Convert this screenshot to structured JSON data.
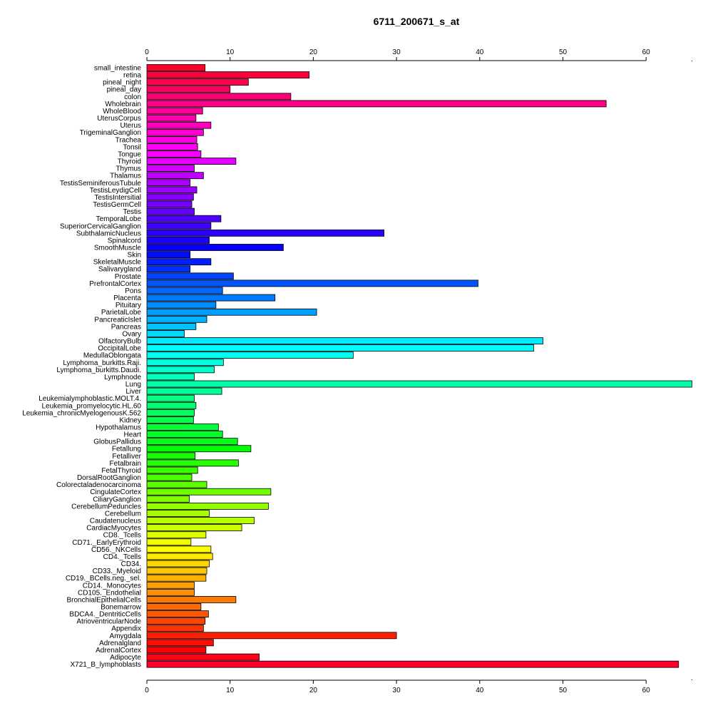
{
  "chart_data": {
    "type": "bar",
    "orientation": "horizontal",
    "title": "6711_200671_s_at",
    "xlim": [
      0,
      65.5
    ],
    "xticks": [
      0,
      10,
      20,
      30,
      40,
      50,
      60
    ],
    "colormap": "rainbow (red-magenta-blue-cyan-green-yellow-orange-red from top to bottom)",
    "categories": [
      "small_intestine",
      "retina",
      "pineal_night",
      "pineal_day",
      "colon",
      "Wholebrain",
      "WholeBlood",
      "UterusCorpus",
      "Uterus",
      "TrigeminalGanglion",
      "Trachea",
      "Tonsil",
      "Tongue",
      "Thyroid",
      "Thymus",
      "Thalamus",
      "TestisSeminiferousTubule",
      "TestisLeydigCell",
      "TestisIntersitial",
      "TestisGermCell",
      "Testis",
      "TemporalLobe",
      "SuperiorCervicalGanglion",
      "SubthalamicNucleus",
      "Spinalcord",
      "SmoothMuscle",
      "Skin",
      "SkeletalMuscle",
      "Salivarygland",
      "Prostate",
      "PrefrontalCortex",
      "Pons",
      "Placenta",
      "Pituitary",
      "ParietalLobe",
      "PancreaticIslet",
      "Pancreas",
      "Ovary",
      "OlfactoryBulb",
      "OccipitalLobe",
      "MedullaOblongata",
      "Lymphoma_burkitts.Raji.",
      "Lymphoma_burkitts.Daudi.",
      "Lymphnode",
      "Lung",
      "Liver",
      "Leukemialymphoblastic.MOLT.4.",
      "Leukemia_promyelocytic.HL.60",
      "Leukemia_chronicMyelogenousK.562",
      "Kidney",
      "Hypothalamus",
      "Heart",
      "GlobusPallidus",
      "Fetallung",
      "Fetalliver",
      "Fetalbrain",
      "FetalThyroid",
      "DorsalRootGanglion",
      "Colorectaladenocarcinoma",
      "CingulateCortex",
      "CiliaryGanglion",
      "CerebellumPeduncles",
      "Cerebellum",
      "Caudatenucleus",
      "CardiacMyocytes",
      "CD8._Tcells",
      "CD71._EarlyErythroid",
      "CD56._NKCells",
      "CD4._Tcells",
      "CD34.",
      "CD33._Myeloid",
      "CD19._BCells.neg._sel.",
      "CD14._Monocytes",
      "CD105._Endothelial",
      "BronchialEpithelialCells",
      "Bonemarrow",
      "BDCA4._DentriticCells",
      "AtrioventricularNode",
      "Appendix",
      "Amygdala",
      "Adrenalgland",
      "AdrenalCortex",
      "Adipocyte",
      "X721_B_lymphoblasts"
    ],
    "values": [
      7.0,
      19.5,
      12.2,
      10.0,
      17.3,
      55.2,
      6.7,
      5.9,
      7.7,
      6.8,
      6.0,
      6.1,
      6.5,
      10.7,
      5.7,
      6.8,
      5.2,
      6.0,
      5.6,
      5.4,
      5.7,
      8.9,
      7.7,
      28.5,
      7.5,
      16.4,
      5.2,
      7.7,
      5.2,
      10.4,
      39.8,
      9.1,
      15.4,
      8.3,
      20.4,
      7.2,
      5.9,
      4.5,
      47.6,
      46.5,
      24.8,
      9.2,
      8.1,
      5.7,
      65.5,
      9.0,
      5.7,
      5.9,
      5.7,
      5.6,
      8.6,
      9.1,
      10.9,
      12.5,
      5.8,
      11.0,
      6.1,
      5.4,
      7.2,
      14.9,
      5.1,
      14.6,
      7.5,
      12.9,
      11.4,
      7.1,
      5.3,
      7.7,
      7.9,
      7.5,
      7.2,
      7.1,
      5.7,
      5.7,
      10.7,
      6.5,
      7.4,
      7.0,
      6.8,
      30.0,
      8.0,
      7.1,
      13.5,
      63.9
    ]
  }
}
